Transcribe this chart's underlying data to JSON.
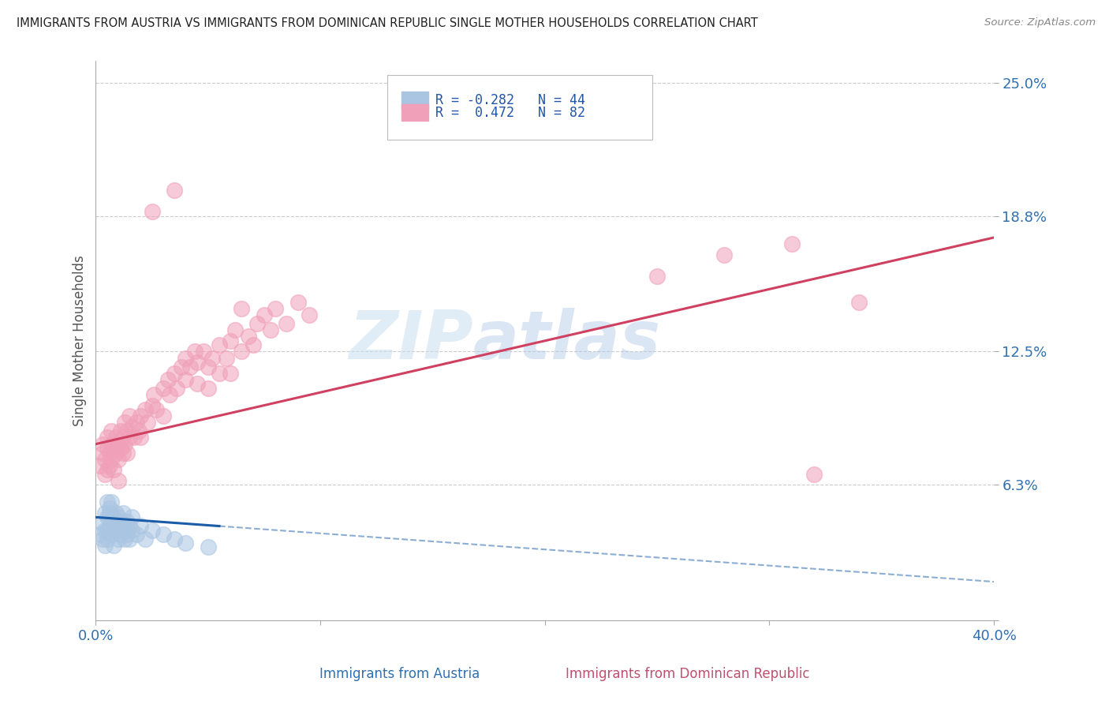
{
  "title": "IMMIGRANTS FROM AUSTRIA VS IMMIGRANTS FROM DOMINICAN REPUBLIC SINGLE MOTHER HOUSEHOLDS CORRELATION CHART",
  "source": "Source: ZipAtlas.com",
  "xlabel_blue": "Immigrants from Austria",
  "xlabel_pink": "Immigrants from Dominican Republic",
  "ylabel": "Single Mother Households",
  "watermark_1": "ZIP",
  "watermark_2": "atlas",
  "legend_blue_R": "R = -0.282",
  "legend_blue_N": "N = 44",
  "legend_pink_R": "R =  0.472",
  "legend_pink_N": "N = 82",
  "xmin": 0.0,
  "xmax": 0.4,
  "ymin": 0.0,
  "ymax": 0.26,
  "yticks": [
    0.0,
    0.063,
    0.125,
    0.188,
    0.25
  ],
  "ytick_labels": [
    "",
    "6.3%",
    "12.5%",
    "18.8%",
    "25.0%"
  ],
  "xticks": [
    0.0,
    0.1,
    0.2,
    0.3,
    0.4
  ],
  "xtick_labels": [
    "0.0%",
    "",
    "",
    "",
    "40.0%"
  ],
  "blue_color": "#aac5e2",
  "pink_color": "#f0a0b8",
  "blue_line_color": "#1a5ca8",
  "pink_line_color": "#d04060",
  "blue_scatter": [
    [
      0.002,
      0.04
    ],
    [
      0.003,
      0.038
    ],
    [
      0.003,
      0.045
    ],
    [
      0.004,
      0.042
    ],
    [
      0.004,
      0.05
    ],
    [
      0.004,
      0.035
    ],
    [
      0.005,
      0.048
    ],
    [
      0.005,
      0.042
    ],
    [
      0.005,
      0.055
    ],
    [
      0.005,
      0.038
    ],
    [
      0.006,
      0.05
    ],
    [
      0.006,
      0.044
    ],
    [
      0.006,
      0.052
    ],
    [
      0.007,
      0.046
    ],
    [
      0.007,
      0.04
    ],
    [
      0.007,
      0.055
    ],
    [
      0.008,
      0.048
    ],
    [
      0.008,
      0.042
    ],
    [
      0.008,
      0.035
    ],
    [
      0.009,
      0.05
    ],
    [
      0.009,
      0.044
    ],
    [
      0.01,
      0.048
    ],
    [
      0.01,
      0.042
    ],
    [
      0.01,
      0.038
    ],
    [
      0.011,
      0.046
    ],
    [
      0.011,
      0.04
    ],
    [
      0.012,
      0.044
    ],
    [
      0.012,
      0.05
    ],
    [
      0.013,
      0.042
    ],
    [
      0.013,
      0.038
    ],
    [
      0.014,
      0.046
    ],
    [
      0.014,
      0.04
    ],
    [
      0.015,
      0.044
    ],
    [
      0.015,
      0.038
    ],
    [
      0.016,
      0.042
    ],
    [
      0.016,
      0.048
    ],
    [
      0.018,
      0.04
    ],
    [
      0.02,
      0.044
    ],
    [
      0.022,
      0.038
    ],
    [
      0.025,
      0.042
    ],
    [
      0.03,
      0.04
    ],
    [
      0.035,
      0.038
    ],
    [
      0.04,
      0.036
    ],
    [
      0.05,
      0.034
    ]
  ],
  "pink_scatter": [
    [
      0.002,
      0.072
    ],
    [
      0.003,
      0.078
    ],
    [
      0.003,
      0.082
    ],
    [
      0.004,
      0.068
    ],
    [
      0.004,
      0.075
    ],
    [
      0.005,
      0.08
    ],
    [
      0.005,
      0.085
    ],
    [
      0.005,
      0.07
    ],
    [
      0.006,
      0.078
    ],
    [
      0.006,
      0.072
    ],
    [
      0.007,
      0.082
    ],
    [
      0.007,
      0.088
    ],
    [
      0.007,
      0.075
    ],
    [
      0.008,
      0.08
    ],
    [
      0.008,
      0.07
    ],
    [
      0.009,
      0.085
    ],
    [
      0.009,
      0.078
    ],
    [
      0.01,
      0.082
    ],
    [
      0.01,
      0.075
    ],
    [
      0.01,
      0.065
    ],
    [
      0.011,
      0.08
    ],
    [
      0.011,
      0.088
    ],
    [
      0.012,
      0.085
    ],
    [
      0.012,
      0.078
    ],
    [
      0.013,
      0.082
    ],
    [
      0.013,
      0.092
    ],
    [
      0.014,
      0.088
    ],
    [
      0.014,
      0.078
    ],
    [
      0.015,
      0.085
    ],
    [
      0.015,
      0.095
    ],
    [
      0.016,
      0.09
    ],
    [
      0.017,
      0.085
    ],
    [
      0.018,
      0.092
    ],
    [
      0.019,
      0.088
    ],
    [
      0.02,
      0.095
    ],
    [
      0.02,
      0.085
    ],
    [
      0.022,
      0.098
    ],
    [
      0.023,
      0.092
    ],
    [
      0.025,
      0.1
    ],
    [
      0.025,
      0.19
    ],
    [
      0.026,
      0.105
    ],
    [
      0.027,
      0.098
    ],
    [
      0.03,
      0.108
    ],
    [
      0.03,
      0.095
    ],
    [
      0.032,
      0.112
    ],
    [
      0.033,
      0.105
    ],
    [
      0.035,
      0.115
    ],
    [
      0.035,
      0.2
    ],
    [
      0.036,
      0.108
    ],
    [
      0.038,
      0.118
    ],
    [
      0.04,
      0.122
    ],
    [
      0.04,
      0.112
    ],
    [
      0.042,
      0.118
    ],
    [
      0.044,
      0.125
    ],
    [
      0.045,
      0.12
    ],
    [
      0.045,
      0.11
    ],
    [
      0.048,
      0.125
    ],
    [
      0.05,
      0.118
    ],
    [
      0.05,
      0.108
    ],
    [
      0.052,
      0.122
    ],
    [
      0.055,
      0.128
    ],
    [
      0.055,
      0.115
    ],
    [
      0.058,
      0.122
    ],
    [
      0.06,
      0.13
    ],
    [
      0.06,
      0.115
    ],
    [
      0.062,
      0.135
    ],
    [
      0.065,
      0.125
    ],
    [
      0.065,
      0.145
    ],
    [
      0.068,
      0.132
    ],
    [
      0.07,
      0.128
    ],
    [
      0.072,
      0.138
    ],
    [
      0.075,
      0.142
    ],
    [
      0.078,
      0.135
    ],
    [
      0.08,
      0.145
    ],
    [
      0.085,
      0.138
    ],
    [
      0.09,
      0.148
    ],
    [
      0.095,
      0.142
    ],
    [
      0.25,
      0.16
    ],
    [
      0.28,
      0.17
    ],
    [
      0.31,
      0.175
    ],
    [
      0.32,
      0.068
    ],
    [
      0.34,
      0.148
    ]
  ]
}
